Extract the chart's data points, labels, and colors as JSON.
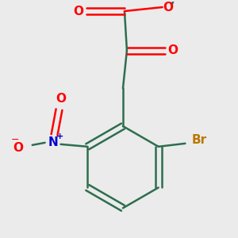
{
  "bg_color": "#ebebeb",
  "bond_color": "#2d6e4e",
  "O_color": "#ff0000",
  "N_color": "#0000cc",
  "Br_color": "#b87800",
  "methyl_color": "#2d6e4e",
  "figsize": [
    3.0,
    3.0
  ],
  "dpi": 100,
  "xlim": [
    0,
    300
  ],
  "ylim": [
    0,
    300
  ]
}
